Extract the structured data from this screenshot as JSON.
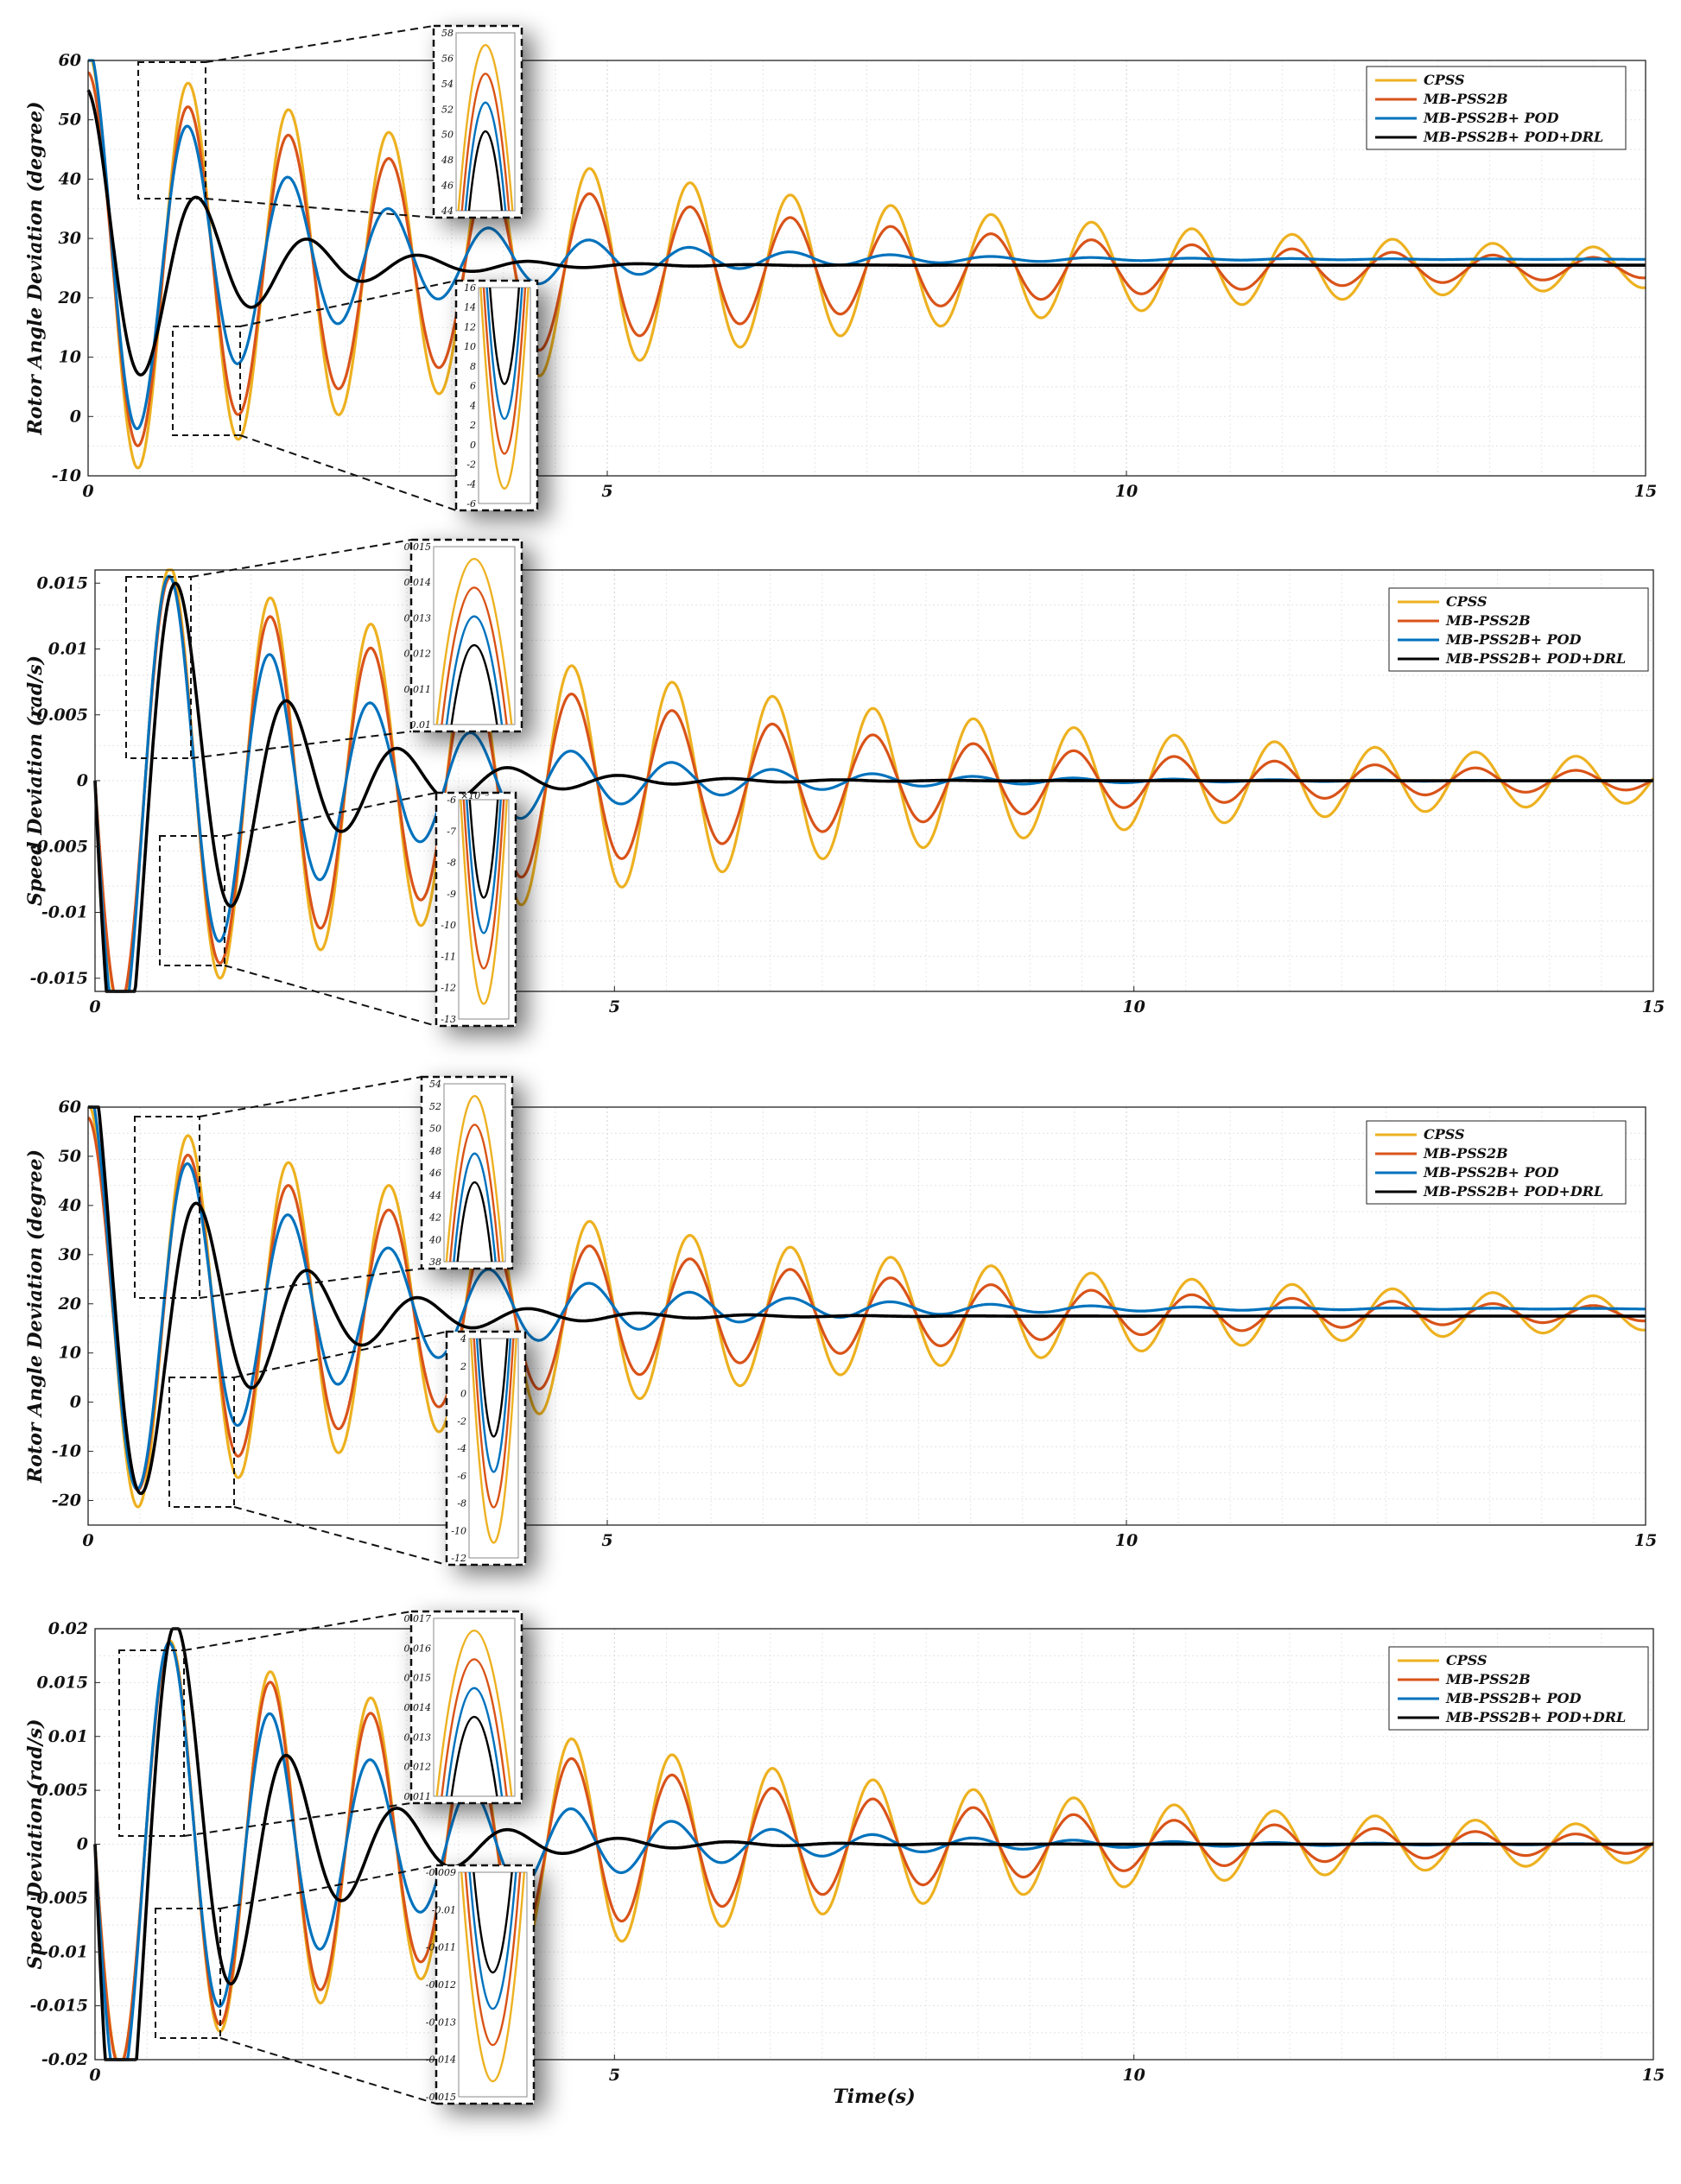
{
  "colors": {
    "CPSS": "#EDB120",
    "MB-PSS2B": "#D95319",
    "MB-PSS2B+ POD": "#0072BD",
    "MB-PSS2B+ POD+DRL": "#000000"
  },
  "chart_data": [
    {
      "type": "line",
      "ylabel": "Rotor Angle Deviation (degree)",
      "xlabel": "",
      "xlim": [
        0,
        15
      ],
      "ylim": [
        -10,
        60
      ],
      "xticks": [
        "0",
        "5",
        "10",
        "15"
      ],
      "yticks": [
        "-10",
        "0",
        "10",
        "20",
        "30",
        "40",
        "50",
        "60"
      ],
      "grid": true,
      "legend_position": "top-right",
      "series": [
        {
          "name": "CPSS",
          "initial": 55,
          "final": 25,
          "amplitude_at_t1": 31,
          "damping": 0.16,
          "omega": 6.5
        },
        {
          "name": "MB-PSS2B",
          "initial": 55,
          "final": 25,
          "amplitude_at_t1": 27,
          "damping": 0.2,
          "omega": 6.5
        },
        {
          "name": "MB-PSS2B+ POD",
          "initial": 55,
          "final": 26.5,
          "amplitude_at_t1": 22,
          "damping": 0.5,
          "omega": 6.5
        },
        {
          "name": "MB-PSS2B+ POD+DRL",
          "initial": 55,
          "final": 25.5,
          "amplitude_at_t1": 12,
          "damping": 0.9,
          "omega": 5.9
        }
      ],
      "insets": [
        {
          "yticks": [
            "44",
            "46",
            "48",
            "50",
            "52",
            "54",
            "56",
            "58"
          ]
        },
        {
          "yticks": [
            "-6",
            "-4",
            "-2",
            "0",
            "2",
            "4",
            "6",
            "8",
            "10",
            "12",
            "14",
            "16"
          ]
        }
      ]
    },
    {
      "type": "line",
      "ylabel": "Speed Deviation (rad/s)",
      "xlabel": "",
      "xlim": [
        0,
        15
      ],
      "ylim": [
        -0.016,
        0.016
      ],
      "xticks": [
        "0",
        "5",
        "10",
        "15"
      ],
      "yticks": [
        "-0.015",
        "-0.01",
        "-0.005",
        "0",
        "0.005",
        "0.01",
        "0.015"
      ],
      "grid": true,
      "legend_position": "top-right",
      "series": [
        {
          "name": "CPSS",
          "final": 0,
          "amplitude_at_t1": 0.0155,
          "damping": 0.16,
          "omega": 6.5
        },
        {
          "name": "MB-PSS2B",
          "final": 0,
          "amplitude_at_t1": 0.0145,
          "damping": 0.22,
          "omega": 6.5
        },
        {
          "name": "MB-PSS2B+ POD",
          "final": 0,
          "amplitude_at_t1": 0.0135,
          "damping": 0.5,
          "omega": 6.5
        },
        {
          "name": "MB-PSS2B+ POD+DRL",
          "final": 0,
          "amplitude_at_t1": 0.0125,
          "damping": 0.85,
          "omega": 5.9
        }
      ],
      "insets": [
        {
          "yticks": [
            "0.01",
            "0.011",
            "0.012",
            "0.013",
            "0.014",
            "0.015"
          ]
        },
        {
          "yticks": [
            "-13",
            "-12",
            "-11",
            "-10",
            "-9",
            "-8",
            "-7",
            "-6"
          ],
          "exponent": "×10⁻³"
        }
      ]
    },
    {
      "type": "line",
      "ylabel": "Rotor Angle Deviation (degree)",
      "xlabel": "",
      "xlim": [
        0,
        15
      ],
      "ylim": [
        -25,
        60
      ],
      "xticks": [
        "0",
        "5",
        "10",
        "15"
      ],
      "yticks": [
        "-20",
        "-10",
        "0",
        "10",
        "20",
        "30",
        "40",
        "50",
        "60"
      ],
      "grid": true,
      "legend_position": "top-right",
      "series": [
        {
          "name": "CPSS",
          "initial": 55,
          "final": 18,
          "amplitude_at_t1": 36,
          "damping": 0.17,
          "omega": 6.5
        },
        {
          "name": "MB-PSS2B",
          "initial": 55,
          "final": 18,
          "amplitude_at_t1": 32,
          "damping": 0.22,
          "omega": 6.5
        },
        {
          "name": "MB-PSS2B+ POD",
          "initial": 55,
          "final": 19,
          "amplitude_at_t1": 29,
          "damping": 0.45,
          "omega": 6.5
        },
        {
          "name": "MB-PSS2B+ POD+DRL",
          "initial": 55,
          "final": 17.5,
          "amplitude_at_t1": 24,
          "damping": 0.85,
          "omega": 5.9
        }
      ],
      "insets": [
        {
          "yticks": [
            "38",
            "40",
            "42",
            "44",
            "46",
            "48",
            "50",
            "52",
            "54"
          ]
        },
        {
          "yticks": [
            "-12",
            "-10",
            "-8",
            "-6",
            "-4",
            "-2",
            "0",
            "2",
            "4"
          ]
        }
      ]
    },
    {
      "type": "line",
      "ylabel": "Speed Deviation (rad/s)",
      "xlabel": "Time(s)",
      "xlim": [
        0,
        15
      ],
      "ylim": [
        -0.02,
        0.02
      ],
      "xticks": [
        "0",
        "5",
        "10",
        "15"
      ],
      "yticks": [
        "-0.02",
        "-0.015",
        "-0.01",
        "-0.005",
        "0",
        "0.005",
        "0.01",
        "0.015",
        "0.02"
      ],
      "grid": true,
      "legend_position": "top-right",
      "series": [
        {
          "name": "CPSS",
          "final": 0,
          "amplitude_at_t1": 0.018,
          "damping": 0.17,
          "omega": 6.5
        },
        {
          "name": "MB-PSS2B",
          "final": 0,
          "amplitude_at_t1": 0.0175,
          "damping": 0.22,
          "omega": 6.5
        },
        {
          "name": "MB-PSS2B+ POD",
          "final": 0,
          "amplitude_at_t1": 0.0165,
          "damping": 0.45,
          "omega": 6.5
        },
        {
          "name": "MB-PSS2B+ POD+DRL",
          "final": 0,
          "amplitude_at_t1": 0.017,
          "damping": 0.85,
          "omega": 5.9
        }
      ],
      "insets": [
        {
          "yticks": [
            "0.011",
            "0.012",
            "0.013",
            "0.014",
            "0.015",
            "0.016",
            "0.017"
          ]
        },
        {
          "yticks": [
            "-0.015",
            "-0.014",
            "-0.013",
            "-0.012",
            "-0.011",
            "-0.01",
            "-0.009"
          ]
        }
      ]
    }
  ]
}
